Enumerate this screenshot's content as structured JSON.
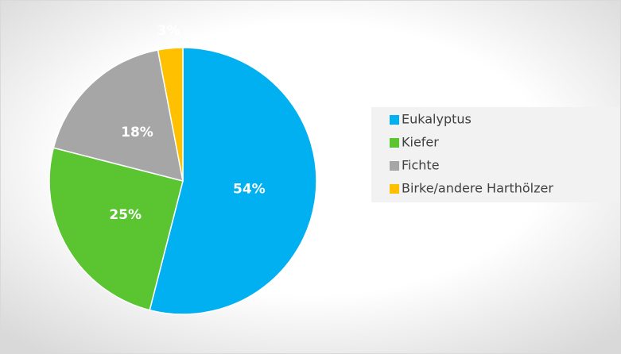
{
  "chart_data": {
    "type": "pie",
    "categories": [
      "Eukalyptus",
      "Kiefer",
      "Fichte",
      "Birke/andere Harthölzer"
    ],
    "values": [
      54,
      25,
      18,
      3
    ],
    "value_labels": [
      "54%",
      "25%",
      "18%",
      "3%"
    ],
    "colors": [
      "#00b0f0",
      "#5ac531",
      "#a6a6a6",
      "#ffc000"
    ],
    "legend": "right"
  }
}
